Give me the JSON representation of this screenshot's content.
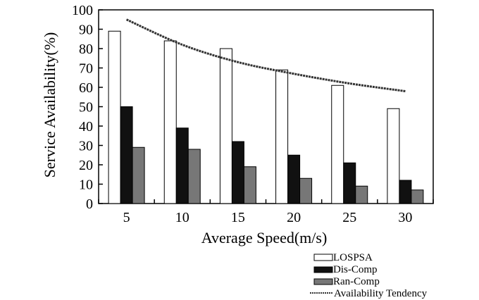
{
  "chart_data": {
    "type": "bar",
    "title": "",
    "xlabel": "Average Speed(m/s)",
    "ylabel": "Service Availability(%)",
    "ylim": [
      0,
      100
    ],
    "yticks": [
      0,
      10,
      20,
      30,
      40,
      50,
      60,
      70,
      80,
      90,
      100
    ],
    "categories": [
      "5",
      "10",
      "15",
      "20",
      "25",
      "30"
    ],
    "series": [
      {
        "name": "LOSPSA",
        "values": [
          89,
          84,
          80,
          69,
          61,
          49
        ],
        "color": "#ffffff"
      },
      {
        "name": "Dis-Comp",
        "values": [
          50,
          39,
          32,
          25,
          21,
          12
        ],
        "color": "#111111"
      },
      {
        "name": "Ran-Comp",
        "values": [
          29,
          28,
          19,
          13,
          9,
          7
        ],
        "color": "#777777"
      }
    ],
    "trend": {
      "name": "Availability Tendency",
      "type": "line",
      "x": [
        5,
        10,
        15,
        20,
        25,
        30
      ],
      "values": [
        95,
        82,
        73,
        67,
        62,
        58
      ],
      "color": "#333333"
    },
    "grid": false,
    "legend": "bottom-right"
  }
}
